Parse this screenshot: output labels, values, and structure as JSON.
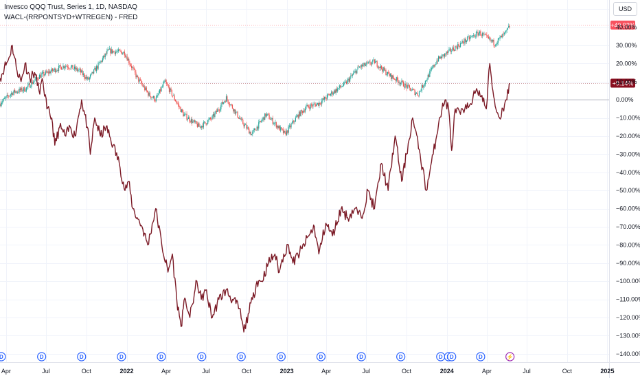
{
  "header": {
    "main_series": "Invesco QQQ Trust, Series 1, 1D, NASDAQ",
    "compare_series": "WACL-(RRPONTSYD+WTREGEN) - FRED"
  },
  "currency_button": "USD",
  "colors": {
    "up": "#26a69a",
    "down": "#ef5350",
    "wacl_line": "#7b1a26",
    "grid": "#f0f3fa",
    "zero_line": "#b2b5be",
    "qqq_badge": "#f7525f",
    "wacl_badge": "#880e1f",
    "event_blue": "#2962ff",
    "event_purple": "#9c27b0"
  },
  "badges": {
    "qqq": "+40.92%",
    "wacl": "+9.14%"
  },
  "chart_data": {
    "type": "line",
    "y_unit": "percent",
    "ylim": [
      -145,
      55
    ],
    "xlim": [
      "2021-03-18",
      "2025-01-05"
    ],
    "y_ticks": [
      50,
      40,
      30,
      20,
      10,
      0,
      -10,
      -20,
      -30,
      -40,
      -50,
      -60,
      -70,
      -80,
      -90,
      -100,
      -110,
      -120,
      -130,
      -140
    ],
    "y_tick_labels": [
      "50.00%",
      "40.00%",
      "30.00%",
      "20.00%",
      "10.00%",
      "0.00%",
      "−10.00%",
      "−20.00%",
      "−30.00%",
      "−40.00%",
      "−50.00%",
      "−60.00%",
      "−70.00%",
      "−80.00%",
      "−90.00%",
      "−100.00%",
      "−110.00%",
      "−120.00%",
      "−130.00%",
      "−140.00%"
    ],
    "x_ticks": [
      {
        "date": "2021-04-01",
        "label": "Apr",
        "bold": false
      },
      {
        "date": "2021-07-01",
        "label": "Jul",
        "bold": false
      },
      {
        "date": "2021-10-01",
        "label": "Oct",
        "bold": false
      },
      {
        "date": "2022-01-01",
        "label": "2022",
        "bold": true
      },
      {
        "date": "2022-04-01",
        "label": "Apr",
        "bold": false
      },
      {
        "date": "2022-07-01",
        "label": "Jul",
        "bold": false
      },
      {
        "date": "2022-10-01",
        "label": "Oct",
        "bold": false
      },
      {
        "date": "2023-01-01",
        "label": "2023",
        "bold": true
      },
      {
        "date": "2023-04-01",
        "label": "Apr",
        "bold": false
      },
      {
        "date": "2023-07-01",
        "label": "Jul",
        "bold": false
      },
      {
        "date": "2023-10-01",
        "label": "Oct",
        "bold": false
      },
      {
        "date": "2024-01-01",
        "label": "2024",
        "bold": true
      },
      {
        "date": "2024-04-01",
        "label": "Apr",
        "bold": false
      },
      {
        "date": "2024-07-01",
        "label": "Jul",
        "bold": false
      },
      {
        "date": "2024-10-01",
        "label": "Oct",
        "bold": false
      },
      {
        "date": "2025-01-01",
        "label": "2025",
        "bold": true
      }
    ],
    "series": [
      {
        "name": "Invesco QQQ Trust, Series 1, 1D, NASDAQ",
        "style": "candles",
        "dates": [
          "2021-03-18",
          "2021-04-15",
          "2021-05-15",
          "2021-06-15",
          "2021-07-15",
          "2021-08-15",
          "2021-09-15",
          "2021-10-05",
          "2021-11-20",
          "2021-12-27",
          "2022-01-25",
          "2022-02-20",
          "2022-03-08",
          "2022-03-29",
          "2022-05-10",
          "2022-06-16",
          "2022-07-15",
          "2022-08-16",
          "2022-09-20",
          "2022-10-13",
          "2022-11-15",
          "2022-12-28",
          "2023-01-25",
          "2023-02-15",
          "2023-03-15",
          "2023-04-15",
          "2023-05-15",
          "2023-06-15",
          "2023-07-20",
          "2023-08-20",
          "2023-09-15",
          "2023-10-27",
          "2023-12-10",
          "2024-01-15",
          "2024-02-15",
          "2024-03-15",
          "2024-04-19",
          "2024-05-15",
          "2024-05-24"
        ],
        "values": [
          -2,
          4,
          6,
          13,
          16,
          19,
          16,
          11,
          27,
          26,
          12,
          3,
          0,
          10,
          -8,
          -15,
          -10,
          1,
          -12,
          -19,
          -8,
          -19,
          -9,
          -4,
          -2,
          4,
          9,
          18,
          21,
          14,
          10,
          3,
          22,
          28,
          33,
          37,
          31,
          37,
          41
        ]
      },
      {
        "name": "WACL-(RRPONTSYD+WTREGEN) - FRED",
        "style": "line",
        "dates": [
          "2021-03-18",
          "2021-03-28",
          "2021-04-06",
          "2021-04-15",
          "2021-04-24",
          "2021-05-05",
          "2021-05-14",
          "2021-05-25",
          "2021-06-05",
          "2021-06-15",
          "2021-06-24",
          "2021-07-03",
          "2021-07-14",
          "2021-07-21",
          "2021-08-01",
          "2021-08-15",
          "2021-08-25",
          "2021-09-05",
          "2021-09-12",
          "2021-09-20",
          "2021-10-03",
          "2021-10-10",
          "2021-10-20",
          "2021-11-02",
          "2021-11-15",
          "2021-12-01",
          "2021-12-15",
          "2021-12-28",
          "2022-01-05",
          "2022-01-15",
          "2022-01-25",
          "2022-02-05",
          "2022-02-18",
          "2022-03-08",
          "2022-03-22",
          "2022-04-05",
          "2022-04-15",
          "2022-04-25",
          "2022-05-05",
          "2022-05-10",
          "2022-05-15",
          "2022-05-25",
          "2022-06-10",
          "2022-06-20",
          "2022-06-30",
          "2022-07-15",
          "2022-07-30",
          "2022-08-15",
          "2022-08-30",
          "2022-09-15",
          "2022-09-25",
          "2022-10-05",
          "2022-10-15",
          "2022-10-25",
          "2022-11-05",
          "2022-11-20",
          "2022-12-05",
          "2022-12-15",
          "2022-12-25",
          "2023-01-05",
          "2023-01-15",
          "2023-02-05",
          "2023-02-20",
          "2023-03-05",
          "2023-03-15",
          "2023-03-31",
          "2023-04-15",
          "2023-05-05",
          "2023-05-20",
          "2023-06-05",
          "2023-06-20",
          "2023-07-05",
          "2023-07-20",
          "2023-08-05",
          "2023-08-20",
          "2023-09-05",
          "2023-09-20",
          "2023-10-01",
          "2023-10-15",
          "2023-11-01",
          "2023-11-15",
          "2023-12-01",
          "2023-12-15",
          "2023-12-28",
          "2024-01-05",
          "2024-01-12",
          "2024-01-20",
          "2024-02-01",
          "2024-02-15",
          "2024-03-01",
          "2024-03-15",
          "2024-03-31",
          "2024-04-08",
          "2024-04-15",
          "2024-04-22",
          "2024-04-30",
          "2024-05-08",
          "2024-05-15",
          "2024-05-24"
        ],
        "values": [
          12,
          18,
          22,
          30,
          18,
          10,
          20,
          12,
          15,
          5,
          10,
          -5,
          -10,
          -25,
          -15,
          -20,
          -15,
          -20,
          -10,
          0,
          -15,
          -30,
          -10,
          -20,
          -15,
          -25,
          -35,
          -50,
          -45,
          -60,
          -65,
          -70,
          -80,
          -60,
          -80,
          -95,
          -85,
          -110,
          -125,
          -115,
          -110,
          -120,
          -100,
          -110,
          -105,
          -120,
          -110,
          -105,
          -110,
          -115,
          -128,
          -118,
          -110,
          -100,
          -100,
          -90,
          -85,
          -95,
          -85,
          -80,
          -90,
          -82,
          -75,
          -70,
          -85,
          -68,
          -75,
          -60,
          -65,
          -60,
          -65,
          -50,
          -60,
          -35,
          -50,
          -20,
          -45,
          -30,
          -10,
          -30,
          -50,
          -30,
          -10,
          0,
          -5,
          -28,
          -5,
          -8,
          -5,
          2,
          5,
          -5,
          20,
          5,
          -5,
          -10,
          -5,
          0,
          9
        ]
      }
    ],
    "event_markers": [
      {
        "date": "2021-03-21",
        "label": "D",
        "kind": "dividend"
      },
      {
        "date": "2021-06-21",
        "label": "D",
        "kind": "dividend"
      },
      {
        "date": "2021-09-20",
        "label": "D",
        "kind": "dividend"
      },
      {
        "date": "2021-12-20",
        "label": "D",
        "kind": "dividend"
      },
      {
        "date": "2022-03-21",
        "label": "D",
        "kind": "dividend"
      },
      {
        "date": "2022-06-21",
        "label": "D",
        "kind": "dividend"
      },
      {
        "date": "2022-09-19",
        "label": "D",
        "kind": "dividend"
      },
      {
        "date": "2022-12-19",
        "label": "D",
        "kind": "dividend"
      },
      {
        "date": "2023-03-20",
        "label": "D",
        "kind": "dividend"
      },
      {
        "date": "2023-06-20",
        "label": "D",
        "kind": "dividend"
      },
      {
        "date": "2023-09-18",
        "label": "D",
        "kind": "dividend"
      },
      {
        "date": "2023-12-18",
        "label": "D",
        "kind": "dividend"
      },
      {
        "date": "2024-01-05",
        "label": "D",
        "kind": "dividend"
      },
      {
        "date": "2024-01-12",
        "label": "D",
        "kind": "dividend"
      },
      {
        "date": "2024-03-18",
        "label": "D",
        "kind": "dividend"
      },
      {
        "date": "2024-05-24",
        "label": "⚡",
        "kind": "event"
      }
    ]
  }
}
